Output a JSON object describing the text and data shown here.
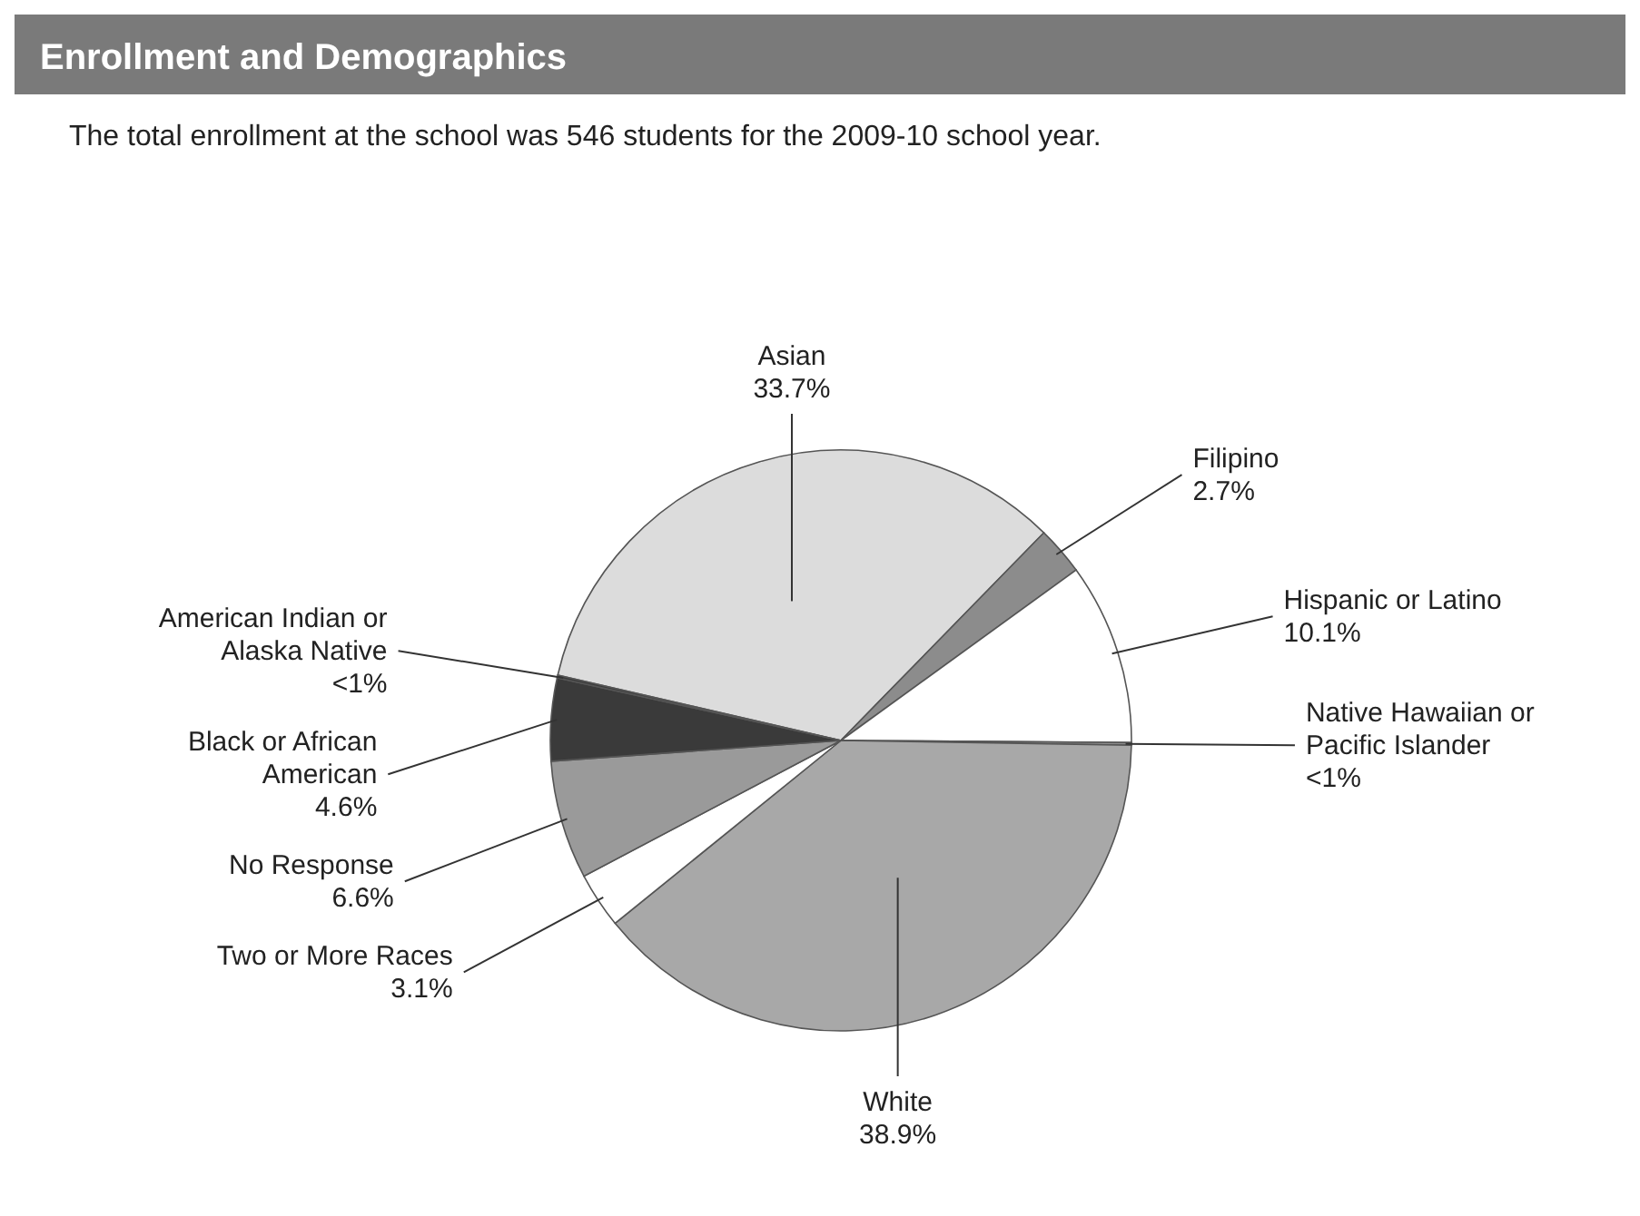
{
  "chart_data": {
    "type": "pie",
    "title": "Enrollment and Demographics",
    "subtitle": "The total enrollment at the school was 546 students for the 2009-10 school year.",
    "categories": [
      "Asian",
      "Filipino",
      "Hispanic or Latino",
      "Native Hawaiian or Pacific Islander",
      "White",
      "Two or More Races",
      "No Response",
      "Black or African American",
      "American Indian or Alaska Native"
    ],
    "values": [
      33.7,
      2.7,
      10.1,
      0.15,
      38.9,
      3.1,
      6.6,
      4.6,
      0.15
    ],
    "value_labels": [
      "33.7%",
      "2.7%",
      "10.1%",
      "<1%",
      "38.9%",
      "3.1%",
      "6.6%",
      "4.6%",
      "<1%"
    ],
    "colors": [
      "#dcdcdc",
      "#8c8c8c",
      "#ffffff",
      "#8c8c8c",
      "#a8a8a8",
      "#ffffff",
      "#9a9a9a",
      "#3a3a3a",
      "#3a3a3a"
    ]
  }
}
